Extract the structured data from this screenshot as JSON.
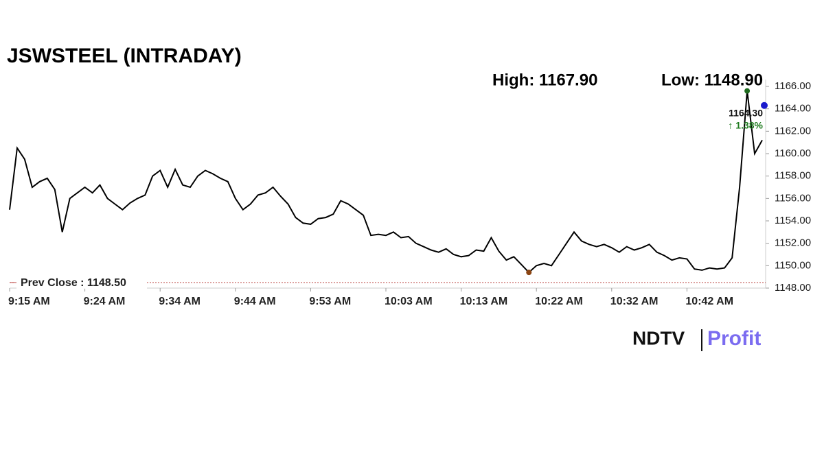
{
  "chart_data": {
    "type": "line",
    "title": "JSWSTEEL (INTRADAY)",
    "high_label": "High: 1167.90",
    "low_label": "Low: 1148.90",
    "last_price": {
      "value": 1164.3,
      "label": "1164.30"
    },
    "change_label": "↑ 1.38%",
    "reference": {
      "value": 1148.5,
      "label": "Prev Close : 1148.50",
      "color": "#c0504d"
    },
    "brand": [
      "NDTV",
      "Profit"
    ],
    "categories": [
      "9:15 AM",
      null,
      null,
      null,
      null,
      null,
      null,
      null,
      null,
      null,
      "9:24 AM",
      null,
      null,
      null,
      null,
      null,
      null,
      null,
      null,
      null,
      "9:34 AM",
      null,
      null,
      null,
      null,
      null,
      null,
      null,
      null,
      null,
      "9:44 AM",
      null,
      null,
      null,
      null,
      null,
      null,
      null,
      null,
      null,
      "9:53 AM",
      null,
      null,
      null,
      null,
      null,
      null,
      null,
      null,
      null,
      "10:03 AM",
      null,
      null,
      null,
      null,
      null,
      null,
      null,
      null,
      null,
      "10:13 AM",
      null,
      null,
      null,
      null,
      null,
      null,
      null,
      null,
      null,
      "10:22 AM",
      null,
      null,
      null,
      null,
      null,
      null,
      null,
      null,
      null,
      "10:32 AM",
      null,
      null,
      null,
      null,
      null,
      null,
      null,
      null,
      null,
      "10:42 AM",
      null,
      null,
      null,
      null,
      null,
      null,
      null,
      null,
      null,
      null
    ],
    "series": [
      {
        "name": "JSWSTEEL",
        "color": "#000000",
        "values": [
          1155.0,
          1160.5,
          1159.5,
          1157.0,
          1157.5,
          1157.8,
          1156.8,
          1153.0,
          1156.0,
          1156.5,
          1157.0,
          1156.5,
          1157.2,
          1156.0,
          1155.5,
          1155.0,
          1155.6,
          1156.0,
          1156.3,
          1158.0,
          1158.5,
          1157.0,
          1158.6,
          1157.2,
          1157.0,
          1158.0,
          1158.5,
          1158.2,
          1157.8,
          1157.5,
          1156.0,
          1155.0,
          1155.5,
          1156.3,
          1156.5,
          1157.0,
          1156.2,
          1155.5,
          1154.3,
          1153.8,
          1153.7,
          1154.2,
          1154.3,
          1154.6,
          1155.8,
          1155.5,
          1155.0,
          1154.5,
          1152.7,
          1152.8,
          1152.7,
          1153.0,
          1152.5,
          1152.6,
          1152.0,
          1151.7,
          1151.4,
          1151.2,
          1151.5,
          1151.0,
          1150.8,
          1150.9,
          1151.4,
          1151.3,
          1152.5,
          1151.3,
          1150.5,
          1150.8,
          1150.1,
          1149.4,
          1150.0,
          1150.2,
          1150.0,
          1151.0,
          1152.0,
          1153.0,
          1152.2,
          1151.9,
          1151.7,
          1151.9,
          1151.6,
          1151.2,
          1151.7,
          1151.4,
          1151.6,
          1151.9,
          1151.2,
          1150.9,
          1150.5,
          1150.7,
          1150.6,
          1149.7,
          1149.6,
          1149.8,
          1149.7,
          1149.8,
          1150.7,
          1157.0,
          1165.6,
          1160.0,
          1161.2
        ]
      }
    ],
    "ylim": [
      1148,
      1166
    ],
    "yticks": [
      {
        "value": 1148,
        "label": "1148.00"
      },
      {
        "value": 1150,
        "label": "1150.00"
      },
      {
        "value": 1152,
        "label": "1152.00"
      },
      {
        "value": 1154,
        "label": "1154.00"
      },
      {
        "value": 1156,
        "label": "1156.00"
      },
      {
        "value": 1158,
        "label": "1158.00"
      },
      {
        "value": 1160,
        "label": "1160.00"
      },
      {
        "value": 1162,
        "label": "1162.00"
      },
      {
        "value": 1164,
        "label": "1164.00"
      },
      {
        "value": 1166,
        "label": "1166.00"
      }
    ]
  }
}
